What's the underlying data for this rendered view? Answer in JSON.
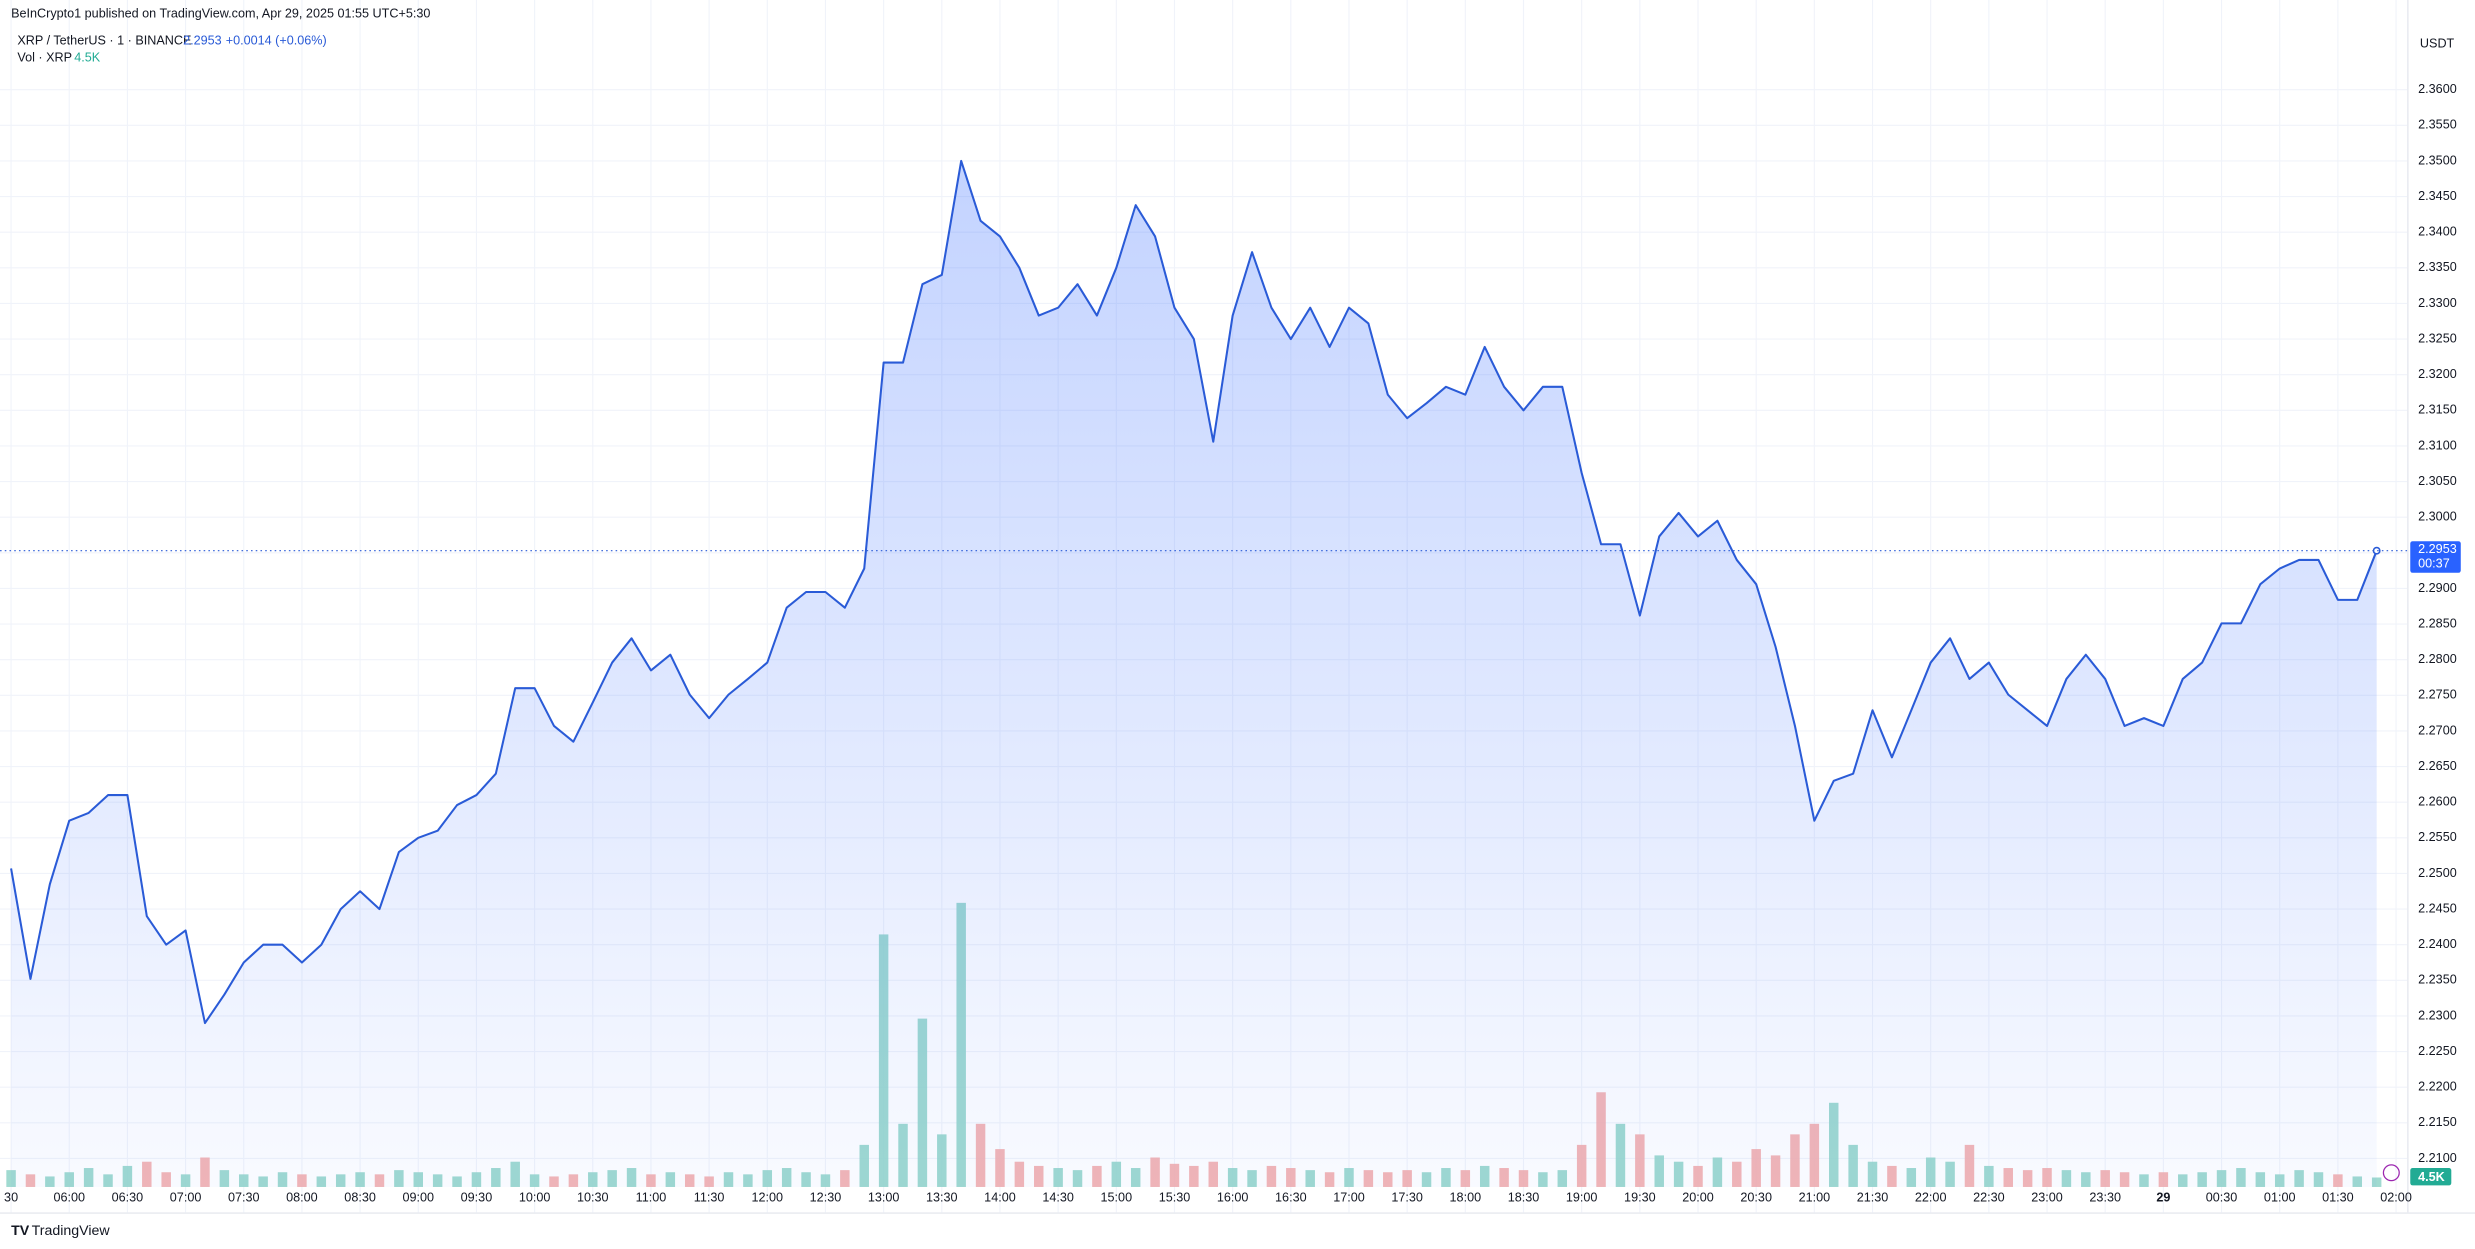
{
  "header": {
    "published": "BeInCrypto1 published on TradingView.com, Apr 29, 2025 01:55 UTC+5:30",
    "symbol": "XRP / TetherUS · 1 · BINANCE",
    "price": "2.2953",
    "change": "+0.0014 (+0.06%)",
    "volume_name": "Vol · XRP",
    "volume_value": "4.5K"
  },
  "footer": {
    "brand": "TradingView"
  },
  "chart_data": {
    "type": "area",
    "currency": "USDT",
    "last_price": {
      "value": 2.2953,
      "label": "2.2953",
      "countdown": "00:37"
    },
    "volume_label": "4.5K",
    "categories": [
      "30",
      null,
      null,
      "06:00",
      null,
      null,
      "06:30",
      null,
      null,
      "07:00",
      null,
      null,
      "07:30",
      null,
      null,
      "08:00",
      null,
      null,
      "08:30",
      null,
      null,
      "09:00",
      null,
      null,
      "09:30",
      null,
      null,
      "10:00",
      null,
      null,
      "10:30",
      null,
      null,
      "11:00",
      null,
      null,
      "11:30",
      null,
      null,
      "12:00",
      null,
      null,
      "12:30",
      null,
      null,
      "13:00",
      null,
      null,
      "13:30",
      null,
      null,
      "14:00",
      null,
      null,
      "14:30",
      null,
      null,
      "15:00",
      null,
      null,
      "15:30",
      null,
      null,
      "16:00",
      null,
      null,
      "16:30",
      null,
      null,
      "17:00",
      null,
      null,
      "17:30",
      null,
      null,
      "18:00",
      null,
      null,
      "18:30",
      null,
      null,
      "19:00",
      null,
      null,
      "19:30",
      null,
      null,
      "20:00",
      null,
      null,
      "20:30",
      null,
      null,
      "21:00",
      null,
      null,
      "21:30",
      null,
      null,
      "22:00",
      null,
      null,
      "22:30",
      null,
      null,
      "23:00",
      null,
      null,
      "23:30",
      null,
      null,
      "29",
      null,
      null,
      "00:30",
      null,
      null,
      "01:00",
      null,
      null,
      "01:30",
      null,
      null,
      "02:00"
    ],
    "bold_categories": [
      "29"
    ],
    "series": [
      {
        "name": "XRP / TetherUS",
        "color": "#2a5bd7",
        "values": [
          2.2507,
          2.2352,
          2.2485,
          2.2574,
          2.2585,
          2.261,
          2.261,
          2.244,
          2.24,
          2.242,
          2.229,
          2.233,
          2.2375,
          2.24,
          2.24,
          2.2375,
          2.24,
          2.245,
          2.2475,
          2.245,
          2.253,
          2.255,
          2.256,
          2.2596,
          2.261,
          2.264,
          2.276,
          2.276,
          2.2707,
          2.2685,
          2.274,
          2.2796,
          2.283,
          2.2785,
          2.2807,
          2.2751,
          2.2718,
          2.2751,
          2.2773,
          2.2796,
          2.2873,
          2.2895,
          2.2895,
          2.2873,
          2.2928,
          2.3217,
          2.3217,
          2.3327,
          2.334,
          2.35,
          2.3416,
          2.3394,
          2.335,
          2.3283,
          2.3294,
          2.3327,
          2.3283,
          2.335,
          2.3438,
          2.3394,
          2.3294,
          2.325,
          2.3106,
          2.3283,
          2.3372,
          2.3294,
          2.325,
          2.3294,
          2.3239,
          2.3294,
          2.3272,
          2.3172,
          2.3139,
          2.316,
          2.3183,
          2.3172,
          2.3239,
          2.3183,
          2.315,
          2.3183,
          2.3183,
          2.3062,
          2.2962,
          2.2962,
          2.2862,
          2.2973,
          2.3006,
          2.2973,
          2.2995,
          2.294,
          2.2906,
          2.2818,
          2.2707,
          2.2574,
          2.263,
          2.264,
          2.2729,
          2.2663,
          2.2729,
          2.2796,
          2.283,
          2.2773,
          2.2796,
          2.2751,
          2.2729,
          2.2707,
          2.2773,
          2.2807,
          2.2773,
          2.2707,
          2.2718,
          2.2707,
          2.2773,
          2.2796,
          2.2851,
          2.2851,
          2.2906,
          2.2928,
          2.294,
          2.294,
          2.2884,
          2.2884,
          2.2953,
          null
        ]
      },
      {
        "name": "Vol · XRP",
        "axis": "volume",
        "up_color": "#8fd3c8",
        "down_color": "#f2a9a9",
        "values": [
          8,
          6,
          5,
          7,
          9,
          6,
          10,
          12,
          7,
          6,
          14,
          8,
          6,
          5,
          7,
          6,
          5,
          6,
          7,
          6,
          8,
          7,
          6,
          5,
          7,
          9,
          12,
          6,
          5,
          6,
          7,
          8,
          9,
          6,
          7,
          6,
          5,
          7,
          6,
          8,
          9,
          7,
          6,
          8,
          20,
          120,
          30,
          80,
          25,
          135,
          30,
          18,
          12,
          10,
          9,
          8,
          10,
          12,
          9,
          14,
          11,
          10,
          12,
          9,
          8,
          10,
          9,
          8,
          7,
          9,
          8,
          7,
          8,
          7,
          9,
          8,
          10,
          9,
          8,
          7,
          8,
          20,
          45,
          30,
          25,
          15,
          12,
          10,
          14,
          12,
          18,
          15,
          25,
          30,
          40,
          20,
          12,
          10,
          9,
          14,
          12,
          20,
          10,
          9,
          8,
          9,
          8,
          7,
          8,
          7,
          6,
          7,
          6,
          7,
          8,
          9,
          7,
          6,
          8,
          7,
          6,
          5,
          4.5,
          null
        ]
      }
    ],
    "ylim": [
      2.206,
      2.3686
    ],
    "yticks": [
      {
        "value": 2.21,
        "label": "2.2100"
      },
      {
        "value": 2.215,
        "label": "2.2150"
      },
      {
        "value": 2.22,
        "label": "2.2200"
      },
      {
        "value": 2.225,
        "label": "2.2250"
      },
      {
        "value": 2.23,
        "label": "2.2300"
      },
      {
        "value": 2.235,
        "label": "2.2350"
      },
      {
        "value": 2.24,
        "label": "2.2400"
      },
      {
        "value": 2.245,
        "label": "2.2450"
      },
      {
        "value": 2.25,
        "label": "2.2500"
      },
      {
        "value": 2.255,
        "label": "2.2550"
      },
      {
        "value": 2.26,
        "label": "2.2600"
      },
      {
        "value": 2.265,
        "label": "2.2650"
      },
      {
        "value": 2.27,
        "label": "2.2700"
      },
      {
        "value": 2.275,
        "label": "2.2750"
      },
      {
        "value": 2.28,
        "label": "2.2800"
      },
      {
        "value": 2.285,
        "label": "2.2850"
      },
      {
        "value": 2.29,
        "label": "2.2900"
      },
      {
        "value": 2.295,
        "label": "2.2950"
      },
      {
        "value": 2.3,
        "label": "2.3000"
      },
      {
        "value": 2.305,
        "label": "2.3050"
      },
      {
        "value": 2.31,
        "label": "2.3100"
      },
      {
        "value": 2.315,
        "label": "2.3150"
      },
      {
        "value": 2.32,
        "label": "2.3200"
      },
      {
        "value": 2.325,
        "label": "2.3250"
      },
      {
        "value": 2.33,
        "label": "2.3300"
      },
      {
        "value": 2.335,
        "label": "2.3350"
      },
      {
        "value": 2.34,
        "label": "2.3400"
      },
      {
        "value": 2.345,
        "label": "2.3450"
      },
      {
        "value": 2.35,
        "label": "2.3500"
      },
      {
        "value": 2.355,
        "label": "2.3550"
      },
      {
        "value": 2.36,
        "label": "2.3600"
      }
    ],
    "grid": true
  }
}
